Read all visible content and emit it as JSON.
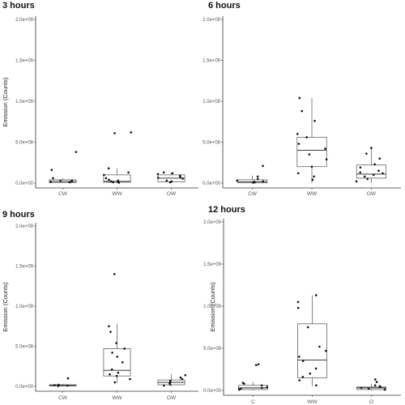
{
  "chart_data": [
    {
      "type": "box",
      "title": "3 hours",
      "ylabel": "Emission (Counts)",
      "ylim": [
        0,
        2000000000
      ],
      "yticks": [
        {
          "value": 0,
          "label": "0.0e+00"
        },
        {
          "value": 500000000,
          "label": "5.0e+08"
        },
        {
          "value": 1000000000,
          "label": "1.0e+09"
        },
        {
          "value": 1500000000,
          "label": "1.5e+09"
        },
        {
          "value": 2000000000,
          "label": "2.0e+09"
        }
      ],
      "categories": [
        "CW",
        "WW",
        "OW"
      ],
      "boxes": [
        {
          "q1": 5000000,
          "median": 20000000,
          "q3": 40000000,
          "lo": 0,
          "hi": 60000000,
          "points": [
            10000000,
            15000000,
            25000000,
            30000000,
            60000000,
            20000000,
            160000000,
            380000000
          ]
        },
        {
          "q1": 10000000,
          "median": 20000000,
          "q3": 100000000,
          "lo": 0,
          "hi": 180000000,
          "points": [
            5000000,
            10000000,
            20000000,
            30000000,
            60000000,
            100000000,
            130000000,
            180000000,
            610000000,
            620000000,
            40000000,
            15000000
          ]
        },
        {
          "q1": 15000000,
          "median": 60000000,
          "q3": 100000000,
          "lo": 0,
          "hi": 130000000,
          "points": [
            10000000,
            30000000,
            55000000,
            65000000,
            90000000,
            110000000,
            120000000,
            130000000,
            20000000,
            75000000
          ]
        }
      ]
    },
    {
      "type": "box",
      "title": "6 hours",
      "ylabel": "",
      "ylim": [
        0,
        2000000000
      ],
      "yticks": [
        {
          "value": 0,
          "label": "0.0e+00"
        },
        {
          "value": 500000000,
          "label": "5.0e+08"
        },
        {
          "value": 1000000000,
          "label": "1.0e+09"
        },
        {
          "value": 1500000000,
          "label": "1.5e+09"
        },
        {
          "value": 2000000000,
          "label": "2.0e+09"
        }
      ],
      "categories": [
        "CW",
        "WW",
        "OW"
      ],
      "boxes": [
        {
          "q1": 2000000,
          "median": 15000000,
          "q3": 40000000,
          "lo": 0,
          "hi": 90000000,
          "points": [
            5000000,
            10000000,
            20000000,
            30000000,
            50000000,
            80000000,
            210000000,
            15000000
          ]
        },
        {
          "q1": 200000000,
          "median": 400000000,
          "q3": 560000000,
          "lo": 0,
          "hi": 1040000000,
          "points": [
            40000000,
            80000000,
            120000000,
            200000000,
            290000000,
            350000000,
            420000000,
            480000000,
            560000000,
            600000000,
            760000000,
            880000000,
            1040000000
          ]
        },
        {
          "q1": 60000000,
          "median": 110000000,
          "q3": 220000000,
          "lo": 0,
          "hi": 430000000,
          "points": [
            20000000,
            50000000,
            80000000,
            100000000,
            120000000,
            150000000,
            190000000,
            230000000,
            300000000,
            360000000,
            430000000,
            130000000
          ]
        }
      ]
    },
    {
      "type": "box",
      "title": "9 hours",
      "ylabel": "Emission (Counts)",
      "ylim": [
        0,
        2000000000
      ],
      "yticks": [
        {
          "value": 0,
          "label": "0.0e+00"
        },
        {
          "value": 500000000,
          "label": "5.0e+08"
        },
        {
          "value": 1000000000,
          "label": "1.0e+09"
        },
        {
          "value": 1500000000,
          "label": "1.5e+09"
        },
        {
          "value": 2000000000,
          "label": "2.0e+09"
        }
      ],
      "categories": [
        "CW",
        "WW",
        "OW"
      ],
      "boxes": [
        {
          "q1": 5000000,
          "median": 12000000,
          "q3": 20000000,
          "lo": 0,
          "hi": 30000000,
          "points": [
            5000000,
            10000000,
            15000000,
            20000000,
            100000000
          ]
        },
        {
          "q1": 130000000,
          "median": 200000000,
          "q3": 470000000,
          "lo": 40000000,
          "hi": 780000000,
          "points": [
            50000000,
            90000000,
            130000000,
            150000000,
            170000000,
            210000000,
            300000000,
            370000000,
            420000000,
            470000000,
            540000000,
            680000000,
            750000000,
            1400000000
          ]
        },
        {
          "q1": 20000000,
          "median": 50000000,
          "q3": 80000000,
          "lo": 0,
          "hi": 150000000,
          "points": [
            10000000,
            25000000,
            40000000,
            55000000,
            70000000,
            90000000,
            110000000,
            140000000
          ]
        }
      ]
    },
    {
      "type": "box",
      "title": "12 hours",
      "ylabel": "Emission (Counts)",
      "ylim": [
        0,
        2000000000
      ],
      "yticks": [
        {
          "value": 0,
          "label": "0.0e+00"
        },
        {
          "value": 500000000,
          "label": "5.0e+08"
        },
        {
          "value": 1000000000,
          "label": "1.0e+09"
        },
        {
          "value": 1500000000,
          "label": "1.5e+09"
        },
        {
          "value": 2000000000,
          "label": "2.0e+09"
        }
      ],
      "categories": [
        "C",
        "WW",
        "O"
      ],
      "boxes": [
        {
          "q1": 10000000,
          "median": 30000000,
          "q3": 60000000,
          "lo": 0,
          "hi": 100000000,
          "points": [
            10000000,
            20000000,
            30000000,
            40000000,
            60000000,
            80000000,
            90000000,
            300000000,
            310000000
          ]
        },
        {
          "q1": 150000000,
          "median": 360000000,
          "q3": 790000000,
          "lo": 50000000,
          "hi": 1130000000,
          "points": [
            60000000,
            120000000,
            160000000,
            200000000,
            260000000,
            350000000,
            400000000,
            470000000,
            520000000,
            750000000,
            980000000,
            1050000000,
            1130000000
          ]
        },
        {
          "q1": 10000000,
          "median": 30000000,
          "q3": 40000000,
          "lo": 0,
          "hi": 80000000,
          "points": [
            10000000,
            20000000,
            30000000,
            40000000,
            50000000,
            60000000,
            130000000,
            100000000
          ]
        }
      ]
    }
  ]
}
